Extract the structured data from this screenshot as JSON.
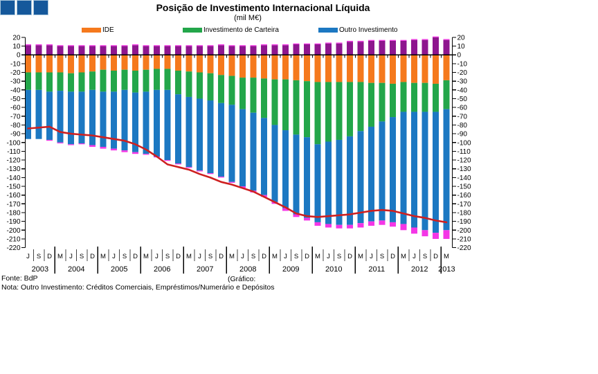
{
  "logo": {
    "square_count": 3,
    "fill_color": "#15589B",
    "border_color": "#A9C6DB"
  },
  "header": {
    "title": "Posição de Investimento Internacional Líquida",
    "subtitle": "(mil M€)"
  },
  "legend": [
    {
      "label": "IDE",
      "color": "#F5791D"
    },
    {
      "label": "Investimento de Carteira",
      "color": "#23A64A"
    },
    {
      "label": "Outro Investimento",
      "color": "#1C78C2"
    }
  ],
  "footer": {
    "source": "Fonte: BdP",
    "graph_note": "(Gráfico:",
    "note": "Nota: Outro Investimento: Créditos Comerciais, Empréstimos/Numerário e Depósitos"
  },
  "chart_data": {
    "type": "bar",
    "subtype": "stacked-bars-with-line",
    "title": "Posição de Investimento Internacional Líquida",
    "subtitle": "(mil M€)",
    "ylabel": "",
    "xlabel": "",
    "ylim": [
      -220,
      20
    ],
    "ytick_step": 10,
    "grid": false,
    "legend_position": "top",
    "x_quarter_labels": [
      "J",
      "S",
      "D",
      "M",
      "J",
      "S",
      "D",
      "M",
      "J",
      "S",
      "D",
      "M",
      "J",
      "S",
      "D",
      "M",
      "J",
      "S",
      "D",
      "M",
      "J",
      "S",
      "D",
      "M",
      "J",
      "S",
      "D",
      "M",
      "J",
      "S",
      "D",
      "M",
      "J",
      "S",
      "D",
      "M",
      "J",
      "S",
      "D",
      "M"
    ],
    "year_groups": [
      {
        "label": "2003",
        "count": 3
      },
      {
        "label": "2004",
        "count": 4
      },
      {
        "label": "2005",
        "count": 4
      },
      {
        "label": "2006",
        "count": 4
      },
      {
        "label": "2007",
        "count": 4
      },
      {
        "label": "2008",
        "count": 4
      },
      {
        "label": "2009",
        "count": 4
      },
      {
        "label": "2010",
        "count": 4
      },
      {
        "label": "2011",
        "count": 4
      },
      {
        "label": "2012",
        "count": 4
      },
      {
        "label": "2013",
        "count": 1
      }
    ],
    "series": [
      {
        "name": "IDE",
        "color": "#F5791D",
        "sign": -1,
        "values": [
          20,
          20,
          20,
          20,
          21,
          20,
          19,
          17,
          18,
          17,
          18,
          17,
          16,
          16,
          18,
          19,
          20,
          21,
          23,
          24,
          26,
          26,
          27,
          28,
          28,
          29,
          30,
          31,
          31,
          31,
          31,
          31,
          32,
          32,
          33,
          31,
          32,
          32,
          33,
          29
        ]
      },
      {
        "name": "Investimento de Carteira",
        "color": "#23A64A",
        "sign": -1,
        "values": [
          20,
          20,
          22,
          21,
          21,
          22,
          21,
          25,
          24,
          23,
          25,
          25,
          24,
          24,
          27,
          29,
          30,
          31,
          32,
          33,
          36,
          40,
          45,
          52,
          58,
          62,
          64,
          71,
          68,
          66,
          62,
          56,
          50,
          44,
          38,
          34,
          33,
          33,
          32,
          33
        ]
      },
      {
        "name": "Outro Investimento",
        "color": "#1C78C2",
        "sign": -1,
        "values": [
          56,
          56,
          55,
          59,
          60,
          59,
          63,
          63,
          65,
          69,
          68,
          71,
          76,
          80,
          79,
          80,
          82,
          83,
          84,
          88,
          88,
          89,
          88,
          88,
          89,
          91,
          92,
          89,
          94,
          97,
          101,
          105,
          108,
          113,
          120,
          128,
          132,
          135,
          138,
          138
        ]
      },
      {
        "name": "unlabeled-magenta-bottom",
        "color": "#F436E6",
        "sign": -1,
        "values": [
          0,
          0,
          1,
          1,
          1,
          1,
          2,
          2,
          2,
          2,
          2,
          1,
          1,
          1,
          1,
          1,
          1,
          1,
          1,
          1,
          2,
          2,
          2,
          2,
          3,
          3,
          3,
          4,
          4,
          4,
          4,
          5,
          5,
          5,
          5,
          7,
          7,
          7,
          7,
          10
        ]
      },
      {
        "name": "unlabeled-purple-positive",
        "color": "#8E168E",
        "sign": 1,
        "values": [
          11,
          11,
          11,
          10,
          10,
          10,
          10,
          10,
          10,
          10,
          11,
          10,
          10,
          10,
          10,
          10,
          10,
          10,
          11,
          10,
          10,
          10,
          11,
          11,
          11,
          12,
          12,
          12,
          13,
          13,
          15,
          15,
          16,
          16,
          16,
          16,
          17,
          17,
          20,
          17
        ]
      },
      {
        "name": "unlabeled-magenta-cap",
        "color": "#F436E6",
        "sign": 1,
        "values": [
          1,
          1,
          1,
          1,
          1,
          1,
          1,
          1,
          1,
          1,
          1,
          1,
          1,
          1,
          1,
          1,
          1,
          1,
          1,
          1,
          1,
          1,
          1,
          1,
          1,
          1,
          1,
          1,
          1,
          1,
          1,
          1,
          1,
          1,
          1,
          1,
          1,
          1,
          1,
          1
        ]
      }
    ],
    "line": {
      "name": "posicao-liquida-total-line",
      "color": "#CE2020",
      "values": [
        -84,
        -83,
        -82,
        -88,
        -90,
        -91,
        -92,
        -94,
        -96,
        -98,
        -102,
        -108,
        -116,
        -125,
        -128,
        -131,
        -136,
        -140,
        -145,
        -148,
        -152,
        -156,
        -162,
        -168,
        -174,
        -181,
        -184,
        -185,
        -184,
        -183,
        -182,
        -180,
        -178,
        -177,
        -178,
        -181,
        -184,
        -186,
        -189,
        -191
      ]
    }
  }
}
